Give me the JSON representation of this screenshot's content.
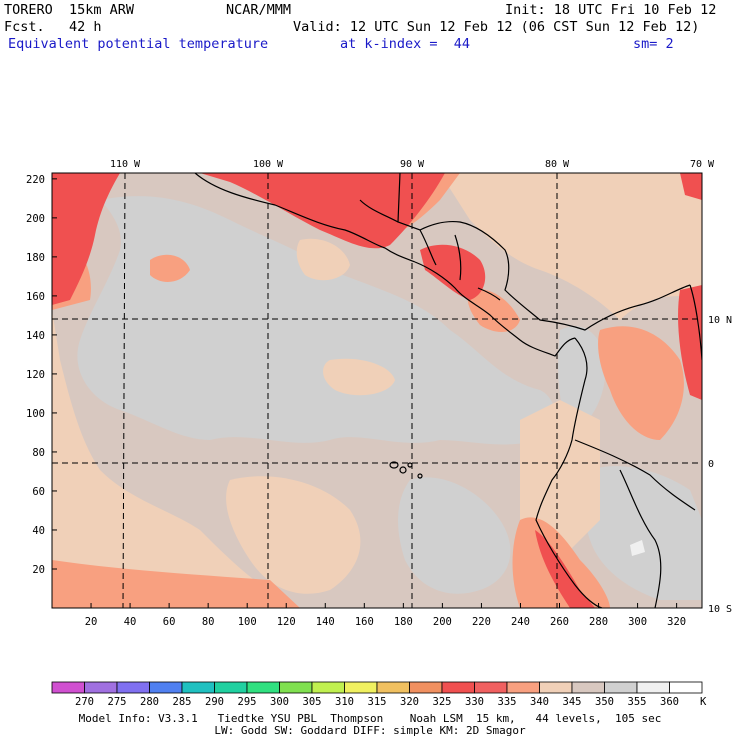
{
  "header": {
    "model": "TORERO  15km ARW",
    "center": "NCAR/MMM",
    "init": "Init: 18 UTC Fri 10 Feb 12",
    "fcst": "Fcst.   42 h",
    "valid": "Valid: 12 UTC Sun 12 Feb 12 (06 CST Sun 12 Feb 12)",
    "field": "Equivalent potential temperature",
    "level": "at k-index =  44",
    "smooth": "sm= 2"
  },
  "map": {
    "x_ticks": [
      "20",
      "40",
      "60",
      "80",
      "100",
      "120",
      "140",
      "160",
      "180",
      "200",
      "220",
      "240",
      "260",
      "280",
      "300",
      "320"
    ],
    "y_ticks": [
      "20",
      "40",
      "60",
      "80",
      "100",
      "120",
      "140",
      "160",
      "180",
      "200",
      "220"
    ],
    "lon_labels": [
      "110 W",
      "100 W",
      "90 W",
      "80 W",
      "70 W"
    ],
    "lat_labels": [
      "10 N",
      "0",
      "10 S"
    ]
  },
  "colorbar": {
    "labels": [
      "270",
      "275",
      "280",
      "285",
      "290",
      "295",
      "300",
      "305",
      "310",
      "315",
      "320",
      "325",
      "330",
      "335",
      "340",
      "345",
      "350",
      "355",
      "360"
    ],
    "unit": "K",
    "colors": [
      "#d050d0",
      "#a070e0",
      "#8070f0",
      "#5080f0",
      "#20c0c0",
      "#20d0a0",
      "#30e080",
      "#80e050",
      "#c0f050",
      "#f0f060",
      "#f0c060",
      "#f09060",
      "#f05050",
      "#f06060",
      "#f8a080",
      "#f0d0b8",
      "#d8c8c0",
      "#d0d0d0",
      "#f0f0f0",
      "#ffffff"
    ]
  },
  "footer": {
    "line1": "Model Info: V3.3.1   Tiedtke YSU PBL  Thompson    Noah LSM  15 km,   44 levels,  105 sec",
    "line2": "LW: Godd SW: Goddard DIFF: simple KM: 2D Smagor"
  }
}
